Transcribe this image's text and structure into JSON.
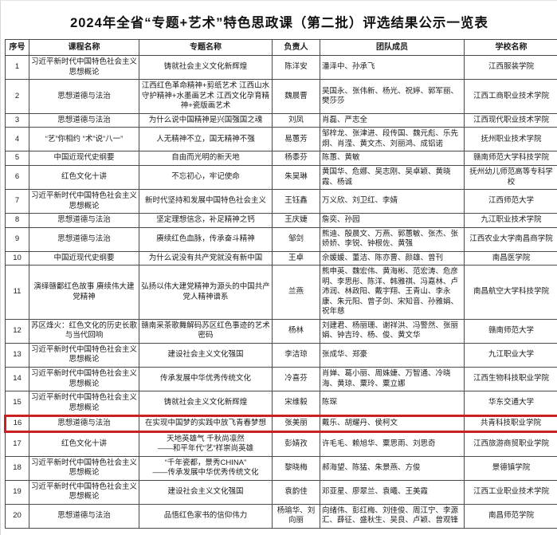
{
  "page": {
    "title": "2024年全省“专题+艺术”特色思政课（第二批）评选结果公示一览表"
  },
  "table": {
    "headers": [
      "序号",
      "课程名称",
      "专题名称",
      "负责人",
      "团队成员",
      "学校名称"
    ],
    "highlight": {
      "row_number": 16,
      "color": "#cc2020"
    },
    "rows": [
      {
        "no": "1",
        "course": "习近平新时代中国特色社会主义思想概论",
        "topic": "铸就社会主义文化新辉煌",
        "leader": "陈洋安",
        "team": "潘泽中、孙承飞",
        "school": "江西服装学院"
      },
      {
        "no": "2",
        "course": "思想道德与法治",
        "topic": "江西红色革命精神+剪纸艺术 江西山水守护精神+水墨画艺术 江西文化孕育精神+瓷版画艺术",
        "leader": "魏晨曹",
        "team": "吴国永、张伟新、杨光、祝婷、郭军丽、樊莎莎",
        "school": "江西工商职业技术学院"
      },
      {
        "no": "3",
        "course": "思想道德与法治",
        "topic": "为什么说中国精神是兴国强国之魂",
        "leader": "刘凤",
        "team": "肖磊、严志全",
        "school": "江西现代职业技术学院"
      },
      {
        "no": "4",
        "course": "“艺”你相约 “术”说“八一”",
        "topic": "人无精神不立，国无精神不强",
        "leader": "易蕙芳",
        "team": "邹梓龙、张津进、段传国、魏元彪、乐先炯、肖滢、黄文杰、刘丽鸿、成铝诺",
        "school": "抚州职业技术学院"
      },
      {
        "no": "5",
        "course": "中国近现代史纲要",
        "topic": "自由而光明的新天地",
        "leader": "杨黍芬",
        "team": "陈蕙、黄敏",
        "school": "赣南师范大学科技学院"
      },
      {
        "no": "6",
        "course": "红色文化十讲",
        "topic": "不忘初心，牢记使命",
        "leader": "朱昊琳",
        "team": "黄国华、危娜、吴志刚、吴卓颖、黄晓霞、杨诚",
        "school": "抚州幼儿师范高等专科学校"
      },
      {
        "no": "7",
        "course": "习近平新时代中国特色社会主义思想概论",
        "topic": "新时代坚持和发展中国特色社会主义",
        "leader": "王钰鑫",
        "team": "万义欣、刘卫红、李婧",
        "school": "江西师范大学"
      },
      {
        "no": "8",
        "course": "思想道德与法治",
        "topic": "坚定理想信念，补足精神之钙",
        "leader": "王庆婕",
        "team": "詹奕、孙园",
        "school": "九江职业技术学院"
      },
      {
        "no": "9",
        "course": "思想道德与法治",
        "topic": "赓续红色血脉，传承奋斗精神",
        "leader": "邹剑",
        "team": "熊迪、殷晨文、万燕、郭蕙敏、张杰、张娇娇、李锐、钟根佐、黄强",
        "school": "江西农业大学南昌商学院"
      },
      {
        "no": "10",
        "course": "中国近现代史纲要",
        "topic": "为什么说没有共产党就没有新中国",
        "leader": "王卓",
        "team": "佘媛媛、董洁、陈亦曹、颜雄、曾刊",
        "school": "南昌医学院"
      },
      {
        "no": "11",
        "course": "演绎赣鄱红色故事 赓续伟大建党精神",
        "topic": "弘扬以伟大建党精神为源头的中国共产党人精神谱系",
        "leader": "兰燕",
        "team": "熊申英、魏宏伟、黄海彬、范宏涛、危彦明、李思彤、陈洋、韩雅祺、冯嘉林、卢沛润、林政阳、戴宇翔、王青山、李永康、朱元阳、曾子剑、宋知音、孙雅娟、祝年慈",
        "school": "南昌航空大学科技学院"
      },
      {
        "no": "12",
        "course": "苏区烽火：红色文化的历史长歌与当代回响",
        "topic": "赣南采茶歌舞解码苏区红色事迹的艺术密码",
        "leader": "杨林",
        "team": "刘建君、杨丽珊、谢祥洪、冯警然、张丽娟、钟吉玲、杨、俊、黄文华",
        "school": "赣南师范大学"
      },
      {
        "no": "13",
        "course": "习近平新时代中国特色社会主义思想概论",
        "topic": "建设社会主义文化强国",
        "leader": "李洁琼",
        "team": "张成华、郑豪",
        "school": "九江职业大学"
      },
      {
        "no": "14",
        "course": "习近平新时代中国特色社会主义思想概论",
        "topic": "传承发展中华优秀传统文化",
        "leader": "冷喜芬",
        "team": "肖婵、葛小丽、周姝婕、万智通、冷晓海、黄琼、粟玲、粟立娜",
        "school": "江西生物科技职业学院"
      },
      {
        "no": "15",
        "course": "习近平新时代中国特色社会主义思想概论",
        "topic": "铸就社会主义文化新辉煌",
        "leader": "宋维毅",
        "team": "陈琛",
        "school": "华东交通大学"
      },
      {
        "no": "16",
        "course": "思想道德与法治",
        "topic": "在实现中国梦的实践中放飞青春梦想",
        "leader": "张美丽",
        "team": "戴乐、胡耀丹、侯柯文",
        "school": "共青科技职业学院"
      },
      {
        "no": "17",
        "course": "红色文化十讲",
        "topic": "天地英雄气 千秋尚凛然\n——和平年代“艺”样崇尚英雄",
        "leader": "彭婧孜",
        "team": "许毛毛、赖旭华、粟思雨、刘思奇",
        "school": "江西旅游商贸职业学院"
      },
      {
        "no": "18",
        "course": "习近平新时代中国特色社会主义思想概论",
        "topic": "“千年瓷都，景秀CHINA”\n——传承发展中华优秀传统文化",
        "leader": "黎晓梅",
        "team": "郝海望、陈猛、朱景燕、方俊",
        "school": "景德镇学院"
      },
      {
        "no": "19",
        "course": "习近平新时代中国特色社会主义思想概论",
        "topic": "建设社会主义文化强国",
        "leader": "袁韵佳",
        "team": "邓亚星、廖翠兰、袁曦、王美霞",
        "school": "江西工业职业技术学院"
      },
      {
        "no": "20",
        "course": "思想道德与法治",
        "topic": "品悟红色家书的信仰伟力",
        "leader": "杨瑜华、刘向丽",
        "team": "向绪伟、彭红梅、刘佳俊、周江宁、李源汇、薛征、盛秋生、吴良、卢颖、曾观锋",
        "school": "南昌师范学院"
      }
    ]
  }
}
